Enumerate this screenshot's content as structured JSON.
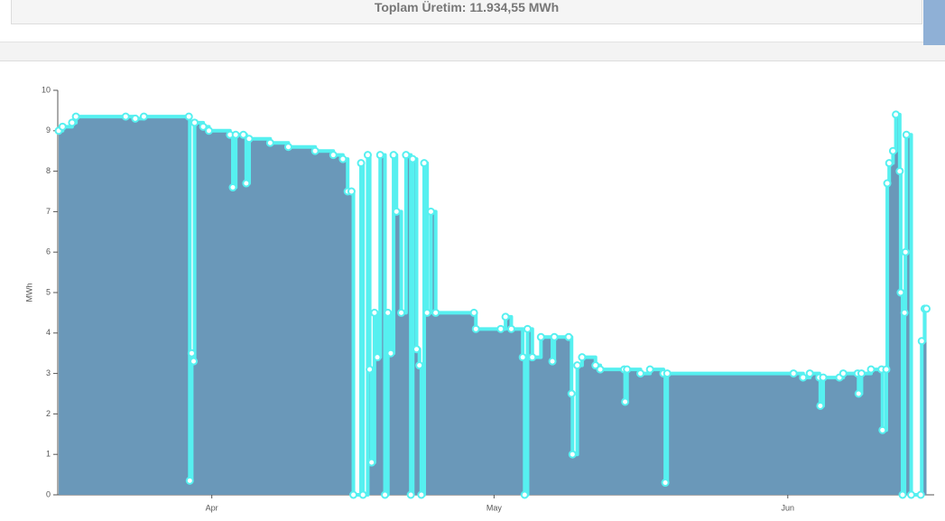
{
  "chart_data": {
    "type": "area",
    "title": "Toplam Üretim: 11.934,55 MWh",
    "y_label": "MWh",
    "step": true,
    "fill_color": "#6a98b9",
    "color": "#56f0f0",
    "xlim": [
      -1.1,
      90.5
    ],
    "ylim": [
      0,
      10
    ],
    "xticks": [
      {
        "value": 15,
        "label": "Apr"
      },
      {
        "value": 44.5,
        "label": "May"
      },
      {
        "value": 75.2,
        "label": "Jun"
      }
    ],
    "yticks": [
      0,
      1,
      2,
      3,
      4,
      5,
      6,
      7,
      8,
      9,
      10
    ],
    "x": [
      -1.0,
      -0.6,
      0.4,
      0.8,
      6.0,
      7.0,
      7.9,
      12.6,
      12.7,
      12.9,
      13.1,
      13.2,
      14.1,
      14.7,
      16.9,
      17.2,
      17.5,
      18.3,
      18.6,
      18.9,
      21.1,
      23.0,
      25.8,
      27.7,
      28.7,
      29.2,
      29.6,
      29.8,
      30.6,
      30.8,
      31.3,
      31.5,
      31.7,
      32.0,
      32.3,
      32.6,
      33.1,
      33.4,
      33.7,
      34.0,
      34.3,
      34.8,
      35.3,
      35.8,
      36.0,
      36.4,
      36.7,
      36.9,
      37.2,
      37.5,
      37.9,
      38.4,
      42.4,
      42.6,
      45.2,
      45.7,
      46.3,
      47.5,
      47.7,
      48.0,
      48.5,
      49.4,
      50.6,
      50.8,
      52.3,
      52.6,
      52.7,
      53.2,
      53.7,
      55.1,
      55.6,
      58.1,
      58.2,
      58.4,
      59.8,
      60.8,
      62.2,
      62.4,
      62.6,
      75.8,
      76.8,
      77.5,
      78.5,
      78.6,
      78.9,
      80.6,
      81.0,
      82.5,
      82.6,
      82.9,
      83.9,
      85.0,
      85.1,
      85.5,
      85.6,
      85.8,
      86.2,
      86.5,
      86.9,
      87.0,
      87.2,
      87.4,
      87.5,
      87.6,
      88.1,
      89.1,
      89.2,
      89.5,
      89.7
    ],
    "values": [
      9.0,
      9.1,
      9.2,
      9.35,
      9.35,
      9.3,
      9.35,
      9.35,
      0.35,
      3.5,
      3.3,
      9.2,
      9.1,
      9.0,
      8.9,
      7.6,
      8.9,
      8.9,
      7.7,
      8.8,
      8.7,
      8.6,
      8.5,
      8.4,
      8.3,
      7.5,
      7.5,
      0,
      8.2,
      0,
      8.4,
      3.1,
      0.8,
      4.5,
      3.4,
      8.4,
      0,
      4.5,
      3.5,
      8.4,
      7.0,
      4.5,
      8.4,
      0,
      8.3,
      3.6,
      3.2,
      0,
      8.2,
      4.5,
      7.0,
      4.5,
      4.5,
      4.1,
      4.1,
      4.4,
      4.1,
      3.4,
      0,
      4.1,
      3.4,
      3.9,
      3.3,
      3.9,
      3.9,
      2.5,
      1.0,
      3.2,
      3.4,
      3.2,
      3.1,
      3.1,
      2.3,
      3.1,
      3.0,
      3.1,
      3.0,
      0.3,
      3.0,
      3.0,
      2.9,
      3.0,
      2.9,
      2.2,
      2.9,
      2.9,
      3.0,
      3.0,
      2.5,
      3.0,
      3.1,
      3.1,
      1.6,
      3.1,
      7.7,
      8.2,
      8.5,
      9.4,
      8.0,
      5.0,
      0,
      4.5,
      6.0,
      8.9,
      0,
      0,
      3.8,
      4.6,
      4.6
    ]
  }
}
